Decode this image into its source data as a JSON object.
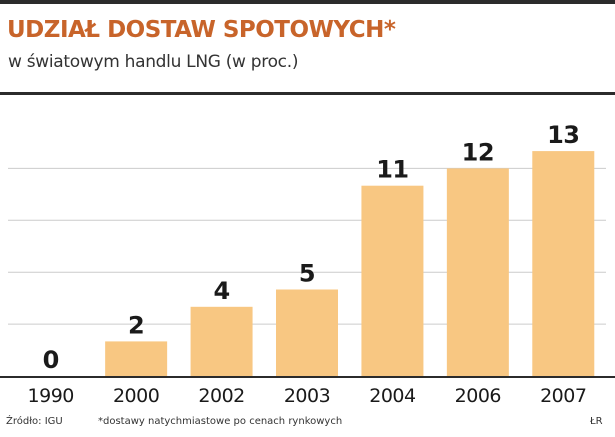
{
  "header": {
    "title": "UDZIAŁ DOSTAW SPOTOWYCH*",
    "subtitle": "w światowym handlu LNG (w proc.)"
  },
  "footer": {
    "source": "Źródło: IGU",
    "note": "*dostawy natychmiastowe po cenach rynkowych",
    "credit": "ŁR"
  },
  "colors": {
    "bar": "#f8c782",
    "grid": "#cccccc",
    "title": "#c8642a",
    "rule": "#2b2b2b"
  },
  "chart_data": {
    "type": "bar",
    "title": "UDZIAŁ DOSTAW SPOTOWYCH*",
    "subtitle": "w światowym handlu LNG (w proc.)",
    "categories": [
      "1990",
      "2000",
      "2002",
      "2003",
      "2004",
      "2006",
      "2007"
    ],
    "values": [
      0,
      2,
      4,
      5,
      11,
      12,
      13
    ],
    "value_labels": [
      "0",
      "2",
      "4",
      "5",
      "11",
      "12",
      "13"
    ],
    "ylim": [
      0,
      14
    ],
    "grid": true,
    "legend": "none",
    "data_labels": true
  }
}
